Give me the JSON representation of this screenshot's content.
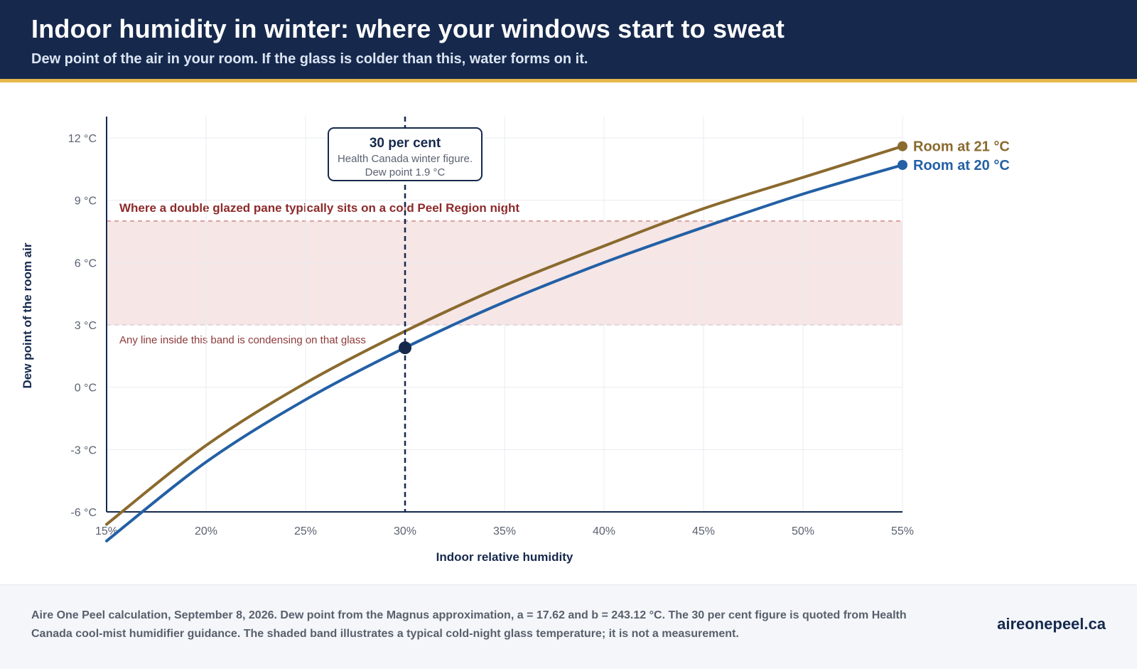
{
  "header": {
    "title": "Indoor humidity in winter: where your windows start to sweat",
    "subtitle": "Dew point of the air in your room. If the glass is colder than this, water forms on it."
  },
  "chart_data": {
    "type": "line",
    "xlabel": "Indoor relative humidity",
    "ylabel": "Dew point of the room air",
    "xlim": [
      15,
      55
    ],
    "ylim": [
      -6,
      12
    ],
    "x_ticks": [
      "15%",
      "20%",
      "25%",
      "30%",
      "35%",
      "40%",
      "45%",
      "50%",
      "55%"
    ],
    "y_ticks": [
      "-6 °C",
      "-3 °C",
      "0 °C",
      "3 °C",
      "6 °C",
      "9 °C",
      "12 °C"
    ],
    "grid": true,
    "series": [
      {
        "name": "Room at 21 °C",
        "color": "#8a6a2e",
        "x": [
          15,
          20,
          25,
          30,
          35,
          40,
          45,
          50,
          55
        ],
        "y": [
          -6.6,
          -2.8,
          0.2,
          2.7,
          4.9,
          6.8,
          8.6,
          10.1,
          11.6
        ]
      },
      {
        "name": "Room at 20 °C",
        "color": "#2360a5",
        "x": [
          15,
          20,
          25,
          30,
          35,
          40,
          45,
          50,
          55
        ],
        "y": [
          -7.4,
          -3.6,
          -0.6,
          1.9,
          4.1,
          6.0,
          7.7,
          9.3,
          10.7
        ]
      }
    ],
    "band": {
      "y_range": [
        3,
        8
      ],
      "color": "#f6e6e6",
      "label_top": "Where a double glazed pane typically sits on a cold Peel Region night",
      "label_bottom": "Any line inside this band is condensing on that glass"
    },
    "marker": {
      "x": 30,
      "y": 1.9,
      "title": "30 per cent",
      "line1": "Health Canada winter figure.",
      "line2": "Dew point 1.9 °C"
    }
  },
  "footer": {
    "note": "Aire One Peel calculation, September 8, 2026. Dew point from the Magnus approximation, a = 17.62 and b = 243.12 °C. The 30 per cent figure is quoted from Health Canada cool-mist humidifier guidance. The shaded band illustrates a typical cold-night glass temperature; it is not a measurement.",
    "brand": "aireonepeel.ca"
  }
}
